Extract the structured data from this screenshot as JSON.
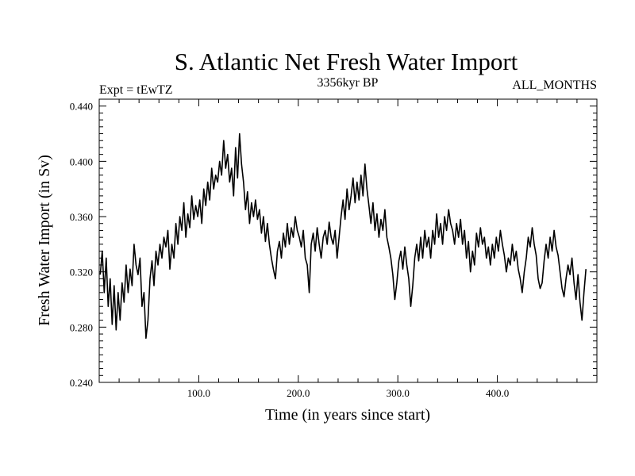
{
  "chart_data": {
    "type": "line",
    "title": "S. Atlantic Net Fresh Water Import",
    "subtitle_left": "Expt = tEwTZ",
    "subtitle_center": "3356kyr BP",
    "subtitle_right": "ALL_MONTHS",
    "xlabel": "Time (in years since start)",
    "ylabel": "Fresh Water Import (in Sv)",
    "xlim": [
      0,
      500
    ],
    "ylim": [
      0.24,
      0.445
    ],
    "x_ticks": [
      100,
      200,
      300,
      400
    ],
    "x_tick_labels": [
      "100.0",
      "200.0",
      "300.0",
      "400.0"
    ],
    "y_ticks": [
      0.24,
      0.28,
      0.32,
      0.36,
      0.4,
      0.44
    ],
    "y_tick_labels": [
      "0.240",
      "0.280",
      "0.320",
      "0.360",
      "0.400",
      "0.440"
    ],
    "grid": false,
    "series": [
      {
        "name": "fresh-water-import",
        "x_start": 1,
        "x_step": 2,
        "values": [
          0.318,
          0.335,
          0.305,
          0.33,
          0.295,
          0.315,
          0.282,
          0.31,
          0.278,
          0.305,
          0.285,
          0.312,
          0.298,
          0.325,
          0.305,
          0.322,
          0.31,
          0.34,
          0.325,
          0.318,
          0.33,
          0.295,
          0.305,
          0.272,
          0.285,
          0.315,
          0.328,
          0.31,
          0.335,
          0.325,
          0.34,
          0.33,
          0.345,
          0.338,
          0.35,
          0.322,
          0.34,
          0.33,
          0.355,
          0.34,
          0.36,
          0.35,
          0.37,
          0.345,
          0.362,
          0.352,
          0.375,
          0.358,
          0.368,
          0.36,
          0.372,
          0.355,
          0.38,
          0.368,
          0.385,
          0.372,
          0.395,
          0.38,
          0.39,
          0.385,
          0.4,
          0.39,
          0.415,
          0.395,
          0.405,
          0.385,
          0.395,
          0.375,
          0.41,
          0.388,
          0.42,
          0.398,
          0.385,
          0.365,
          0.378,
          0.355,
          0.37,
          0.36,
          0.372,
          0.358,
          0.365,
          0.348,
          0.36,
          0.342,
          0.355,
          0.34,
          0.33,
          0.322,
          0.315,
          0.335,
          0.342,
          0.33,
          0.348,
          0.338,
          0.355,
          0.34,
          0.352,
          0.345,
          0.36,
          0.35,
          0.345,
          0.338,
          0.35,
          0.33,
          0.325,
          0.305,
          0.34,
          0.348,
          0.335,
          0.352,
          0.34,
          0.33,
          0.345,
          0.35,
          0.34,
          0.356,
          0.345,
          0.34,
          0.35,
          0.33,
          0.345,
          0.36,
          0.372,
          0.358,
          0.38,
          0.365,
          0.375,
          0.388,
          0.37,
          0.385,
          0.372,
          0.39,
          0.375,
          0.398,
          0.38,
          0.368,
          0.355,
          0.37,
          0.35,
          0.362,
          0.345,
          0.358,
          0.35,
          0.365,
          0.345,
          0.338,
          0.33,
          0.318,
          0.3,
          0.312,
          0.328,
          0.335,
          0.322,
          0.338,
          0.325,
          0.315,
          0.295,
          0.31,
          0.33,
          0.34,
          0.328,
          0.345,
          0.33,
          0.35,
          0.338,
          0.345,
          0.33,
          0.35,
          0.34,
          0.362,
          0.345,
          0.355,
          0.34,
          0.36,
          0.35,
          0.365,
          0.355,
          0.35,
          0.34,
          0.355,
          0.345,
          0.358,
          0.34,
          0.35,
          0.33,
          0.342,
          0.32,
          0.335,
          0.325,
          0.348,
          0.338,
          0.352,
          0.34,
          0.345,
          0.33,
          0.338,
          0.325,
          0.34,
          0.33,
          0.345,
          0.335,
          0.35,
          0.34,
          0.332,
          0.32,
          0.33,
          0.325,
          0.34,
          0.328,
          0.335,
          0.322,
          0.315,
          0.305,
          0.32,
          0.33,
          0.345,
          0.338,
          0.352,
          0.34,
          0.332,
          0.315,
          0.308,
          0.312,
          0.328,
          0.34,
          0.33,
          0.345,
          0.335,
          0.35,
          0.338,
          0.332,
          0.32,
          0.308,
          0.302,
          0.315,
          0.325,
          0.318,
          0.33,
          0.312,
          0.3,
          0.318,
          0.298,
          0.285,
          0.305,
          0.322
        ]
      }
    ]
  }
}
